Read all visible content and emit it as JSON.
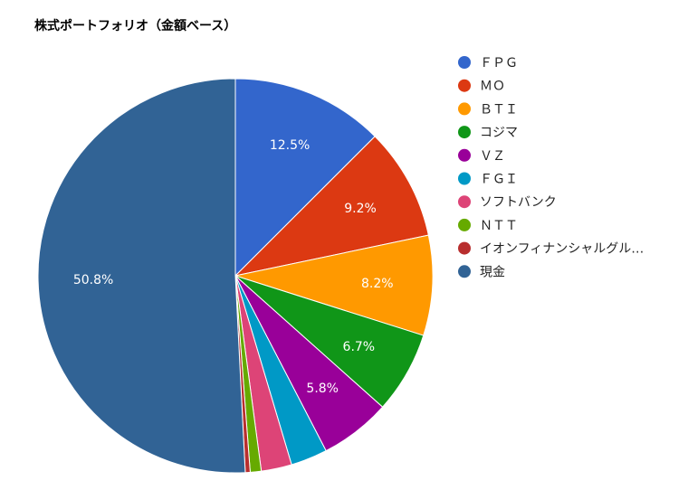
{
  "chart_data": {
    "type": "pie",
    "title": "株式ポートフォリオ（金額ベース）",
    "legend_position": "right",
    "slices": [
      {
        "label": "ＦＰＧ",
        "value": 12.5,
        "display": "12.5%",
        "color": "#3366cc"
      },
      {
        "label": "ＭＯ",
        "value": 9.2,
        "display": "9.2%",
        "color": "#dc3912"
      },
      {
        "label": "ＢＴＩ",
        "value": 8.2,
        "display": "8.2%",
        "color": "#ff9900"
      },
      {
        "label": "コジマ",
        "value": 6.7,
        "display": "6.7%",
        "color": "#109618"
      },
      {
        "label": "ＶＺ",
        "value": 5.8,
        "display": "5.8%",
        "color": "#990099"
      },
      {
        "label": "ＦＧＩ",
        "value": 3.0,
        "display": "",
        "color": "#0099c6"
      },
      {
        "label": "ソフトバンク",
        "value": 2.5,
        "display": "",
        "color": "#dd4477"
      },
      {
        "label": "ＮＴＴ",
        "value": 0.9,
        "display": "",
        "color": "#66aa00"
      },
      {
        "label": "イオンフィナンシャルグル…",
        "value": 0.4,
        "display": "",
        "color": "#b82e2e"
      },
      {
        "label": "現金",
        "value": 50.8,
        "display": "50.8%",
        "color": "#316395"
      }
    ]
  }
}
